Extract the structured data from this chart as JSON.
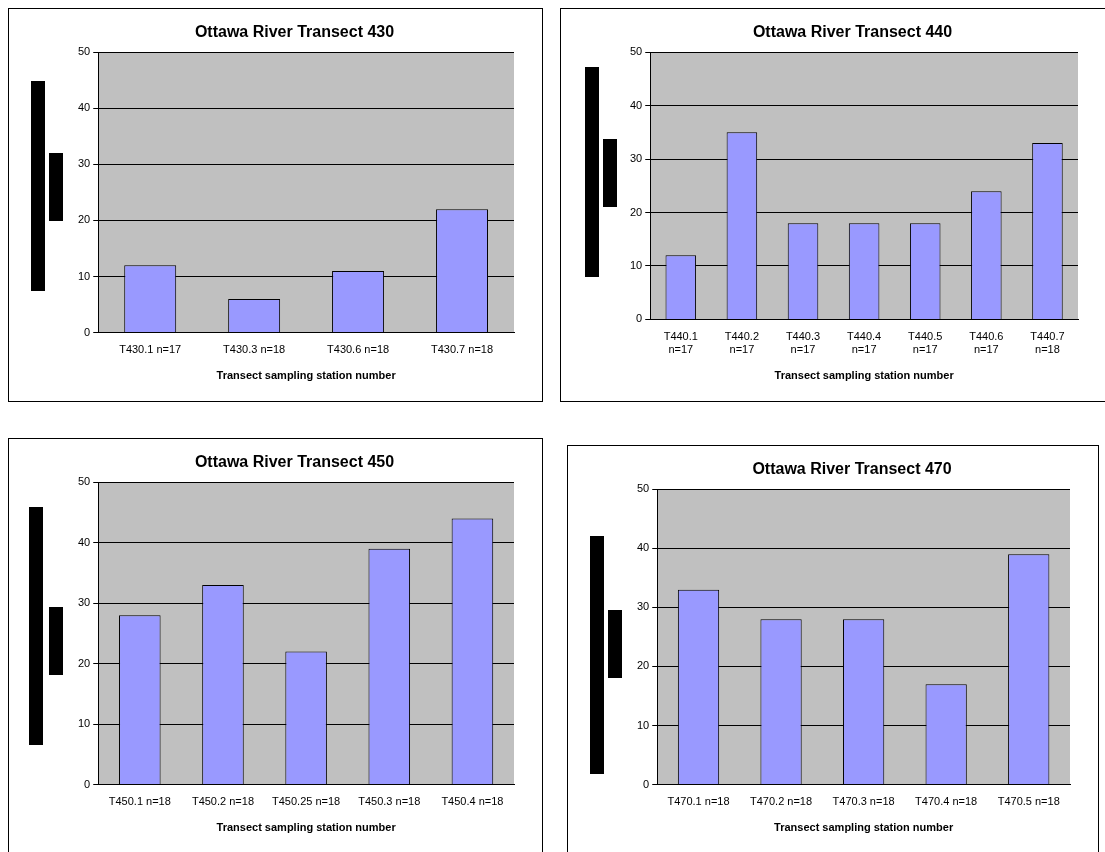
{
  "chart_data": [
    {
      "type": "bar",
      "title": "Ottawa River Transect 430",
      "xlabel": "Transect sampling station number",
      "categories": [
        "T430.1 n=17",
        "T430.3 n=18",
        "T430.6 n=18",
        "T430.7 n=18"
      ],
      "values": [
        12,
        6,
        11,
        22
      ],
      "color": "#9999ff",
      "ylim": [
        0,
        50
      ],
      "yticks": [
        0,
        10,
        20,
        30,
        40,
        50
      ],
      "grid": "y",
      "legend": false
    },
    {
      "type": "bar",
      "title": "Ottawa River Transect 440",
      "xlabel": "Transect sampling station number",
      "categories": [
        "T440.1 n=17",
        "T440.2 n=17",
        "T440.3 n=17",
        "T440.4 n=17",
        "T440.5 n=17",
        "T440.6 n=17",
        "T440.7 n=18"
      ],
      "values": [
        12,
        35,
        18,
        18,
        18,
        24,
        33
      ],
      "color": "#9999ff",
      "ylim": [
        0,
        50
      ],
      "yticks": [
        0,
        10,
        20,
        30,
        40,
        50
      ],
      "grid": "y",
      "legend": false
    },
    {
      "type": "bar",
      "title": "Ottawa River Transect 450",
      "xlabel": "Transect sampling station number",
      "categories": [
        "T450.1 n=18",
        "T450.2 n=18",
        "T450.25 n=18",
        "T450.3 n=18",
        "T450.4 n=18"
      ],
      "values": [
        28,
        33,
        22,
        39,
        44
      ],
      "color": "#9999ff",
      "ylim": [
        0,
        50
      ],
      "yticks": [
        0,
        10,
        20,
        30,
        40,
        50
      ],
      "grid": "y",
      "legend": false
    },
    {
      "type": "bar",
      "title": "Ottawa River Transect 470",
      "xlabel": "Transect sampling station number",
      "categories": [
        "T470.1 n=18",
        "T470.2 n=18",
        "T470.3 n=18",
        "T470.4 n=18",
        "T470.5 n=18"
      ],
      "values": [
        33,
        28,
        28,
        17,
        39
      ],
      "color": "#9999ff",
      "ylim": [
        0,
        50
      ],
      "yticks": [
        0,
        10,
        20,
        30,
        40,
        50
      ],
      "grid": "y",
      "legend": false
    }
  ]
}
